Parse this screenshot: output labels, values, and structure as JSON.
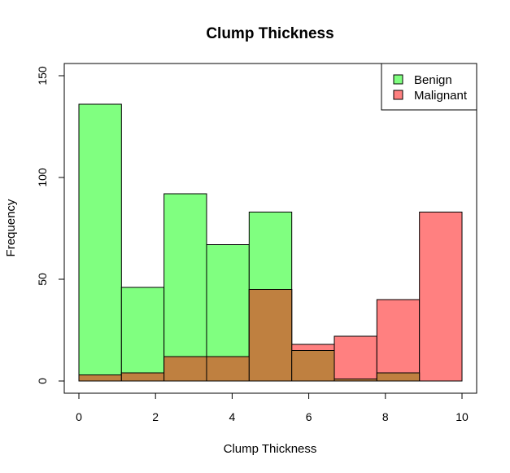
{
  "chart_data": {
    "type": "bar",
    "title": "Clump Thickness",
    "xlabel": "Clump Thickness",
    "ylabel": "Frequency",
    "xlim": [
      0,
      10
    ],
    "ylim": [
      0,
      150
    ],
    "x_ticks": [
      0,
      2,
      4,
      6,
      8,
      10
    ],
    "y_ticks": [
      0,
      50,
      100,
      150
    ],
    "bin_edges": [
      0,
      1.111,
      2.222,
      3.333,
      4.444,
      5.556,
      6.667,
      7.778,
      8.889,
      10
    ],
    "series": [
      {
        "name": "Benign",
        "color": "#80FF80",
        "values": [
          136,
          46,
          92,
          67,
          83,
          15,
          1,
          4,
          0
        ]
      },
      {
        "name": "Malignant",
        "color": "#FF8080",
        "values": [
          3,
          4,
          12,
          12,
          45,
          18,
          22,
          40,
          83
        ]
      }
    ],
    "overlap_color": "#BF8040",
    "legend_position": "top-right",
    "grid": false
  }
}
